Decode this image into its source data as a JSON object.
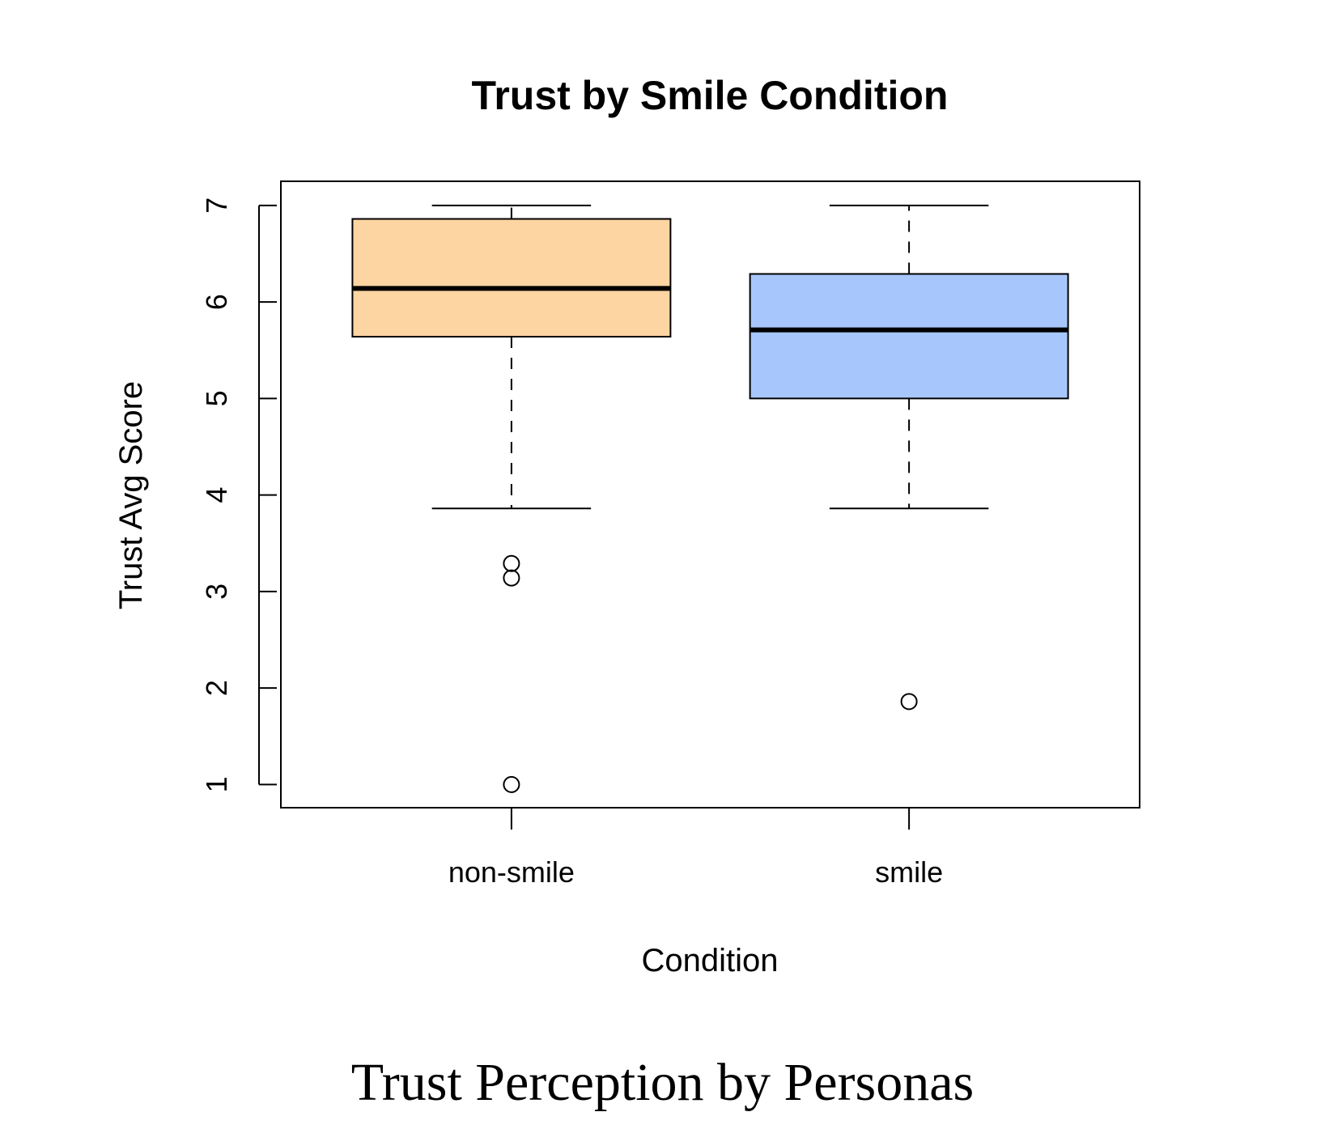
{
  "chart_data": {
    "type": "box",
    "title": "Trust by Smile Condition",
    "xlabel": "Condition",
    "ylabel": "Trust Avg Score",
    "ylim": [
      0.76,
      7.25
    ],
    "yticks": [
      1,
      2,
      3,
      4,
      5,
      6,
      7
    ],
    "grid": false,
    "categories": [
      "non-smile",
      "smile"
    ],
    "series": [
      {
        "category": "non-smile",
        "color": "#fdd5a2",
        "whisker_low": 3.86,
        "q1": 5.64,
        "median": 6.14,
        "q3": 6.86,
        "whisker_high": 7.0,
        "outliers": [
          3.29,
          3.14,
          1.0
        ]
      },
      {
        "category": "smile",
        "color": "#a7c7fc",
        "whisker_low": 3.86,
        "q1": 5.0,
        "median": 5.71,
        "q3": 6.29,
        "whisker_high": 7.0,
        "outliers": [
          1.86
        ]
      }
    ]
  },
  "caption": "Trust Perception by Personas"
}
